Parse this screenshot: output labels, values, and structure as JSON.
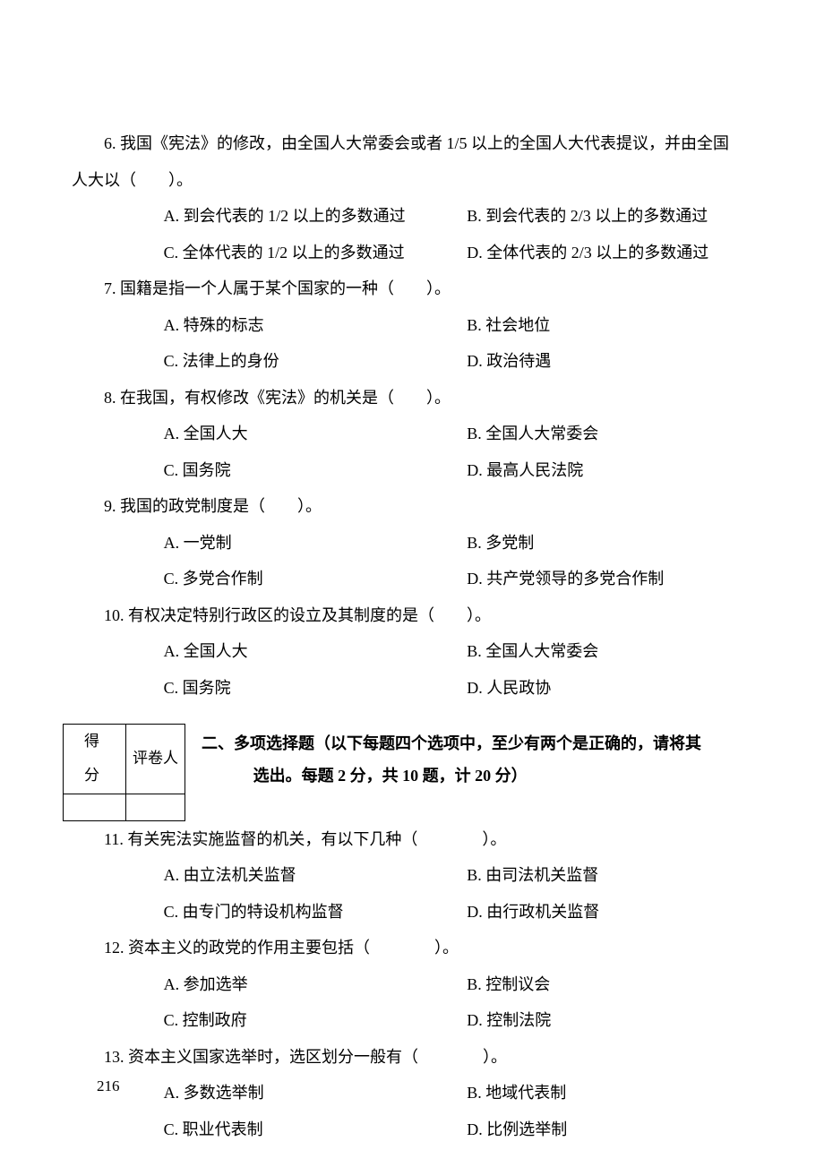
{
  "q6": {
    "stem_l1": "6. 我国《宪法》的修改，由全国人大常委会或者 1/5 以上的全国人大代表提议，并由全国",
    "stem_l2": "人大以（　　）。",
    "a": "A. 到会代表的 1/2 以上的多数通过",
    "b": "B. 到会代表的 2/3 以上的多数通过",
    "c": "C. 全体代表的 1/2 以上的多数通过",
    "d": "D. 全体代表的 2/3 以上的多数通过"
  },
  "q7": {
    "stem": "7. 国籍是指一个人属于某个国家的一种（　　）。",
    "a": "A. 特殊的标志",
    "b": "B. 社会地位",
    "c": "C. 法律上的身份",
    "d": "D. 政治待遇"
  },
  "q8": {
    "stem": "8. 在我国，有权修改《宪法》的机关是（　　）。",
    "a": "A. 全国人大",
    "b": "B. 全国人大常委会",
    "c": "C. 国务院",
    "d": "D. 最高人民法院"
  },
  "q9": {
    "stem": "9. 我国的政党制度是（　　）。",
    "a": "A. 一党制",
    "b": "B. 多党制",
    "c": "C. 多党合作制",
    "d": "D. 共产党领导的多党合作制"
  },
  "q10": {
    "stem": "10. 有权决定特别行政区的设立及其制度的是（　　）。",
    "a": "A. 全国人大",
    "b": "B. 全国人大常委会",
    "c": "C. 国务院",
    "d": "D. 人民政协"
  },
  "score_table": {
    "h1": "得　分",
    "h2": "评卷人"
  },
  "section2": {
    "l1": "二、多项选择题（以下每题四个选项中，至少有两个是正确的，请将其",
    "l2": "选出。每题 2 分，共 10 题，计 20 分）"
  },
  "q11": {
    "stem": "11. 有关宪法实施监督的机关，有以下几种（　　　　）。",
    "a": "A. 由立法机关监督",
    "b": "B. 由司法机关监督",
    "c": "C. 由专门的特设机构监督",
    "d": "D. 由行政机关监督"
  },
  "q12": {
    "stem": "12. 资本主义的政党的作用主要包括（　　　　）。",
    "a": "A. 参加选举",
    "b": "B. 控制议会",
    "c": "C. 控制政府",
    "d": "D. 控制法院"
  },
  "q13": {
    "stem": "13. 资本主义国家选举时，选区划分一般有（　　　　）。",
    "a": "A. 多数选举制",
    "b": "B. 地域代表制",
    "c": "C. 职业代表制",
    "d": "D. 比例选举制"
  },
  "page_num": "216"
}
